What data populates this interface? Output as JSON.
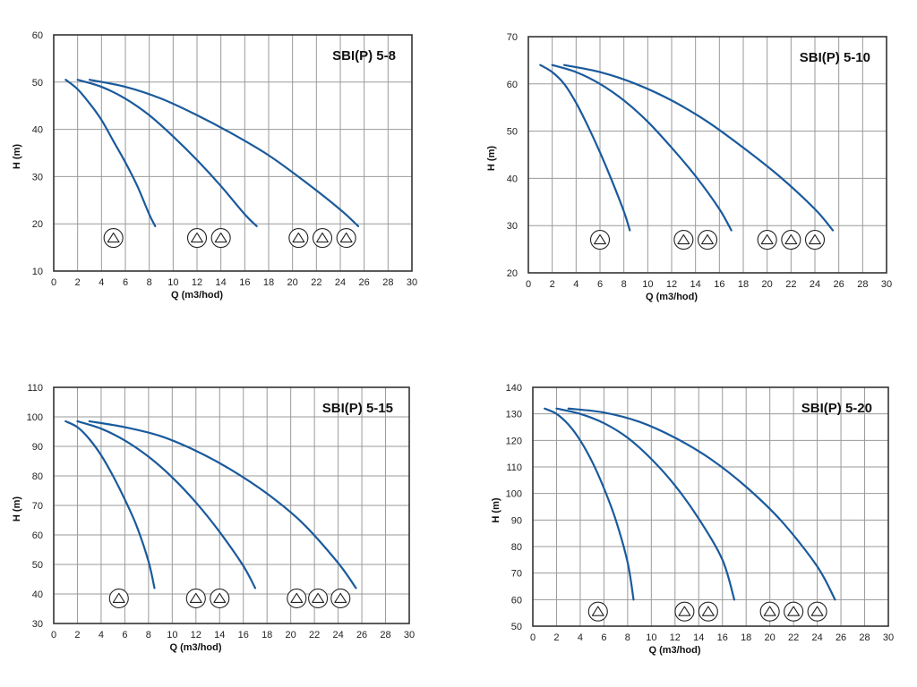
{
  "chart_data": [
    {
      "type": "line",
      "title": "SBI(P) 5-8",
      "xlabel": "Q (m3/hod)",
      "ylabel": "H (m)",
      "xlim": [
        0,
        30
      ],
      "ylim": [
        10,
        60
      ],
      "x_ticks": [
        0,
        2,
        4,
        6,
        8,
        10,
        12,
        14,
        16,
        18,
        20,
        22,
        24,
        26,
        28,
        30
      ],
      "y_ticks": [
        10,
        20,
        30,
        40,
        50,
        60
      ],
      "grid": true,
      "series": [
        {
          "x": [
            1,
            2,
            3,
            4,
            5,
            6,
            7,
            8,
            8.5
          ],
          "y": [
            50.5,
            48.5,
            45.5,
            42,
            37.5,
            33,
            28,
            22,
            19.5
          ]
        },
        {
          "x": [
            2,
            4,
            6,
            8,
            10,
            12,
            14,
            16,
            17
          ],
          "y": [
            50.5,
            49,
            46.5,
            43,
            38.5,
            33.5,
            28,
            22,
            19.5
          ]
        },
        {
          "x": [
            3,
            6,
            9,
            12,
            15,
            18,
            21,
            24,
            25.5
          ],
          "y": [
            50.5,
            49,
            46.5,
            43,
            39,
            34.5,
            29,
            23,
            19.5
          ]
        }
      ],
      "pump_symbols": [
        {
          "x": 5,
          "y": 17
        },
        {
          "x": 12,
          "y": 17
        },
        {
          "x": 14,
          "y": 17
        },
        {
          "x": 20.5,
          "y": 17
        },
        {
          "x": 22.5,
          "y": 17
        },
        {
          "x": 24.5,
          "y": 17
        }
      ]
    },
    {
      "type": "line",
      "title": "SBI(P) 5-10",
      "xlabel": "Q (m3/hod)",
      "ylabel": "H (m)",
      "xlim": [
        0,
        30
      ],
      "ylim": [
        20,
        70
      ],
      "x_ticks": [
        0,
        2,
        4,
        6,
        8,
        10,
        12,
        14,
        16,
        18,
        20,
        22,
        24,
        26,
        28,
        30
      ],
      "y_ticks": [
        20,
        30,
        40,
        50,
        60,
        70
      ],
      "grid": true,
      "series": [
        {
          "x": [
            1,
            2,
            3,
            4,
            5,
            6,
            7,
            8,
            8.5
          ],
          "y": [
            64,
            62.5,
            60,
            56,
            51,
            45.5,
            39.5,
            33,
            29
          ]
        },
        {
          "x": [
            2,
            4,
            6,
            8,
            10,
            12,
            14,
            16,
            17
          ],
          "y": [
            64,
            62.5,
            60,
            56.5,
            52,
            46.5,
            40.5,
            33.5,
            29
          ]
        },
        {
          "x": [
            3,
            6,
            9,
            12,
            15,
            18,
            21,
            24,
            25.5
          ],
          "y": [
            64,
            62.5,
            60,
            56.5,
            52,
            46.5,
            40.5,
            33.5,
            29
          ]
        }
      ],
      "pump_symbols": [
        {
          "x": 6,
          "y": 27
        },
        {
          "x": 13,
          "y": 27
        },
        {
          "x": 15,
          "y": 27
        },
        {
          "x": 20,
          "y": 27
        },
        {
          "x": 22,
          "y": 27
        },
        {
          "x": 24,
          "y": 27
        }
      ]
    },
    {
      "type": "line",
      "title": "SBI(P) 5-15",
      "xlabel": "Q (m3/hod)",
      "ylabel": "H (m)",
      "xlim": [
        0,
        30
      ],
      "ylim": [
        30,
        110
      ],
      "x_ticks": [
        0,
        2,
        4,
        6,
        8,
        10,
        12,
        14,
        16,
        18,
        20,
        22,
        24,
        26,
        28,
        30
      ],
      "y_ticks": [
        30,
        40,
        50,
        60,
        70,
        80,
        90,
        100,
        110
      ],
      "grid": true,
      "series": [
        {
          "x": [
            1,
            2,
            3,
            4,
            5,
            6,
            7,
            8,
            8.5
          ],
          "y": [
            98.5,
            96.5,
            92.5,
            87,
            80,
            72,
            63,
            51,
            42
          ]
        },
        {
          "x": [
            2,
            4,
            6,
            8,
            10,
            12,
            14,
            16,
            17
          ],
          "y": [
            98.5,
            96,
            92,
            86.5,
            79.5,
            71,
            61,
            49.5,
            42
          ]
        },
        {
          "x": [
            3,
            6,
            9,
            12,
            15,
            18,
            21,
            24,
            25.5
          ],
          "y": [
            98.5,
            96.5,
            93.5,
            88.5,
            82,
            74,
            64,
            50.5,
            42
          ]
        }
      ],
      "pump_symbols": [
        {
          "x": 5.5,
          "y": 38.5
        },
        {
          "x": 12,
          "y": 38.5
        },
        {
          "x": 14,
          "y": 38.5
        },
        {
          "x": 20.5,
          "y": 38.5
        },
        {
          "x": 22.3,
          "y": 38.5
        },
        {
          "x": 24.2,
          "y": 38.5
        }
      ]
    },
    {
      "type": "line",
      "title": "SBI(P) 5-20",
      "xlabel": "Q (m3/hod)",
      "ylabel": "H (m)",
      "xlim": [
        0,
        30
      ],
      "ylim": [
        50,
        140
      ],
      "x_ticks": [
        0,
        2,
        4,
        6,
        8,
        10,
        12,
        14,
        16,
        18,
        20,
        22,
        24,
        26,
        28,
        30
      ],
      "y_ticks": [
        50,
        60,
        70,
        80,
        90,
        100,
        110,
        120,
        130,
        140
      ],
      "grid": true,
      "series": [
        {
          "x": [
            1,
            2,
            3,
            4,
            5,
            6,
            7,
            8,
            8.5
          ],
          "y": [
            132,
            130,
            126,
            120,
            112,
            102,
            90,
            74,
            60
          ]
        },
        {
          "x": [
            2,
            4,
            6,
            8,
            10,
            12,
            14,
            16,
            17
          ],
          "y": [
            132,
            130,
            126.5,
            121,
            113,
            103,
            90.5,
            75,
            60
          ]
        },
        {
          "x": [
            3,
            6,
            9,
            12,
            15,
            18,
            21,
            24,
            25.5
          ],
          "y": [
            132,
            130.5,
            127,
            121,
            113,
            102.5,
            89.5,
            72.5,
            60
          ]
        }
      ],
      "pump_symbols": [
        {
          "x": 5.5,
          "y": 55.5
        },
        {
          "x": 12.8,
          "y": 55.5
        },
        {
          "x": 14.8,
          "y": 55.5
        },
        {
          "x": 20,
          "y": 55.5
        },
        {
          "x": 22,
          "y": 55.5
        },
        {
          "x": 24,
          "y": 55.5
        }
      ]
    }
  ]
}
